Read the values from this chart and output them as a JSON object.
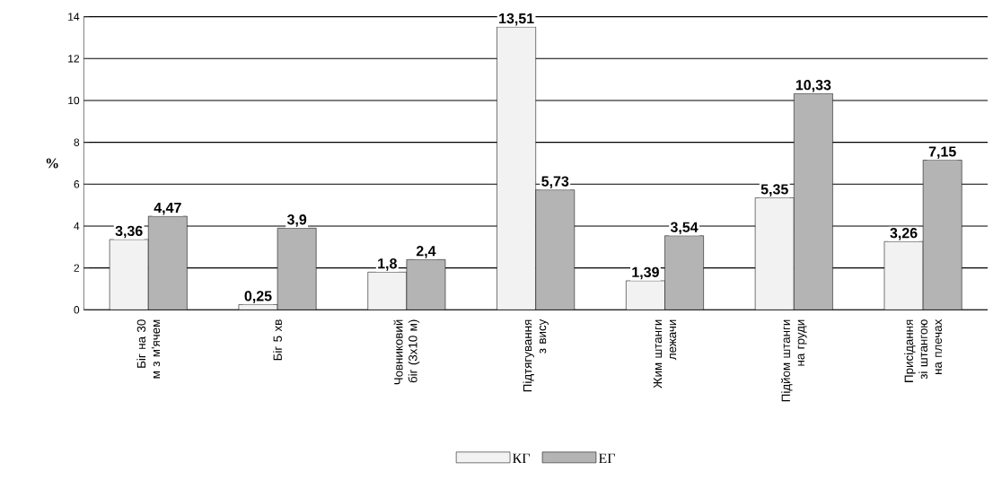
{
  "chart_data": {
    "type": "bar",
    "ylabel": "%",
    "categories": [
      "Біг на 30 м з м'ячем",
      "Біг 5 хв",
      "Човниковий біг (3х10 м)",
      "Підтягування з вису",
      "Жим штанги лежачи",
      "Підйом штанги на груди",
      "Присідання зі штангою на плечах"
    ],
    "series": [
      {
        "name": "КГ",
        "color": "#f2f2f2",
        "values": [
          3.36,
          0.25,
          1.8,
          13.51,
          1.39,
          5.35,
          3.26
        ],
        "value_labels": [
          "3,36",
          "0,25",
          "1,8",
          "13,51",
          "1,39",
          "5,35",
          "3,26"
        ]
      },
      {
        "name": "ЕГ",
        "color": "#b4b4b4",
        "values": [
          4.47,
          3.9,
          2.4,
          5.73,
          3.54,
          10.33,
          7.15
        ],
        "value_labels": [
          "4,47",
          "3,9",
          "2,4",
          "5,73",
          "3,54",
          "10,33",
          "7,15"
        ]
      }
    ],
    "ylim": [
      0,
      14
    ],
    "yticks": [
      0,
      2,
      4,
      6,
      8,
      10,
      12,
      14
    ],
    "grid": "y",
    "legend": "bottom"
  }
}
